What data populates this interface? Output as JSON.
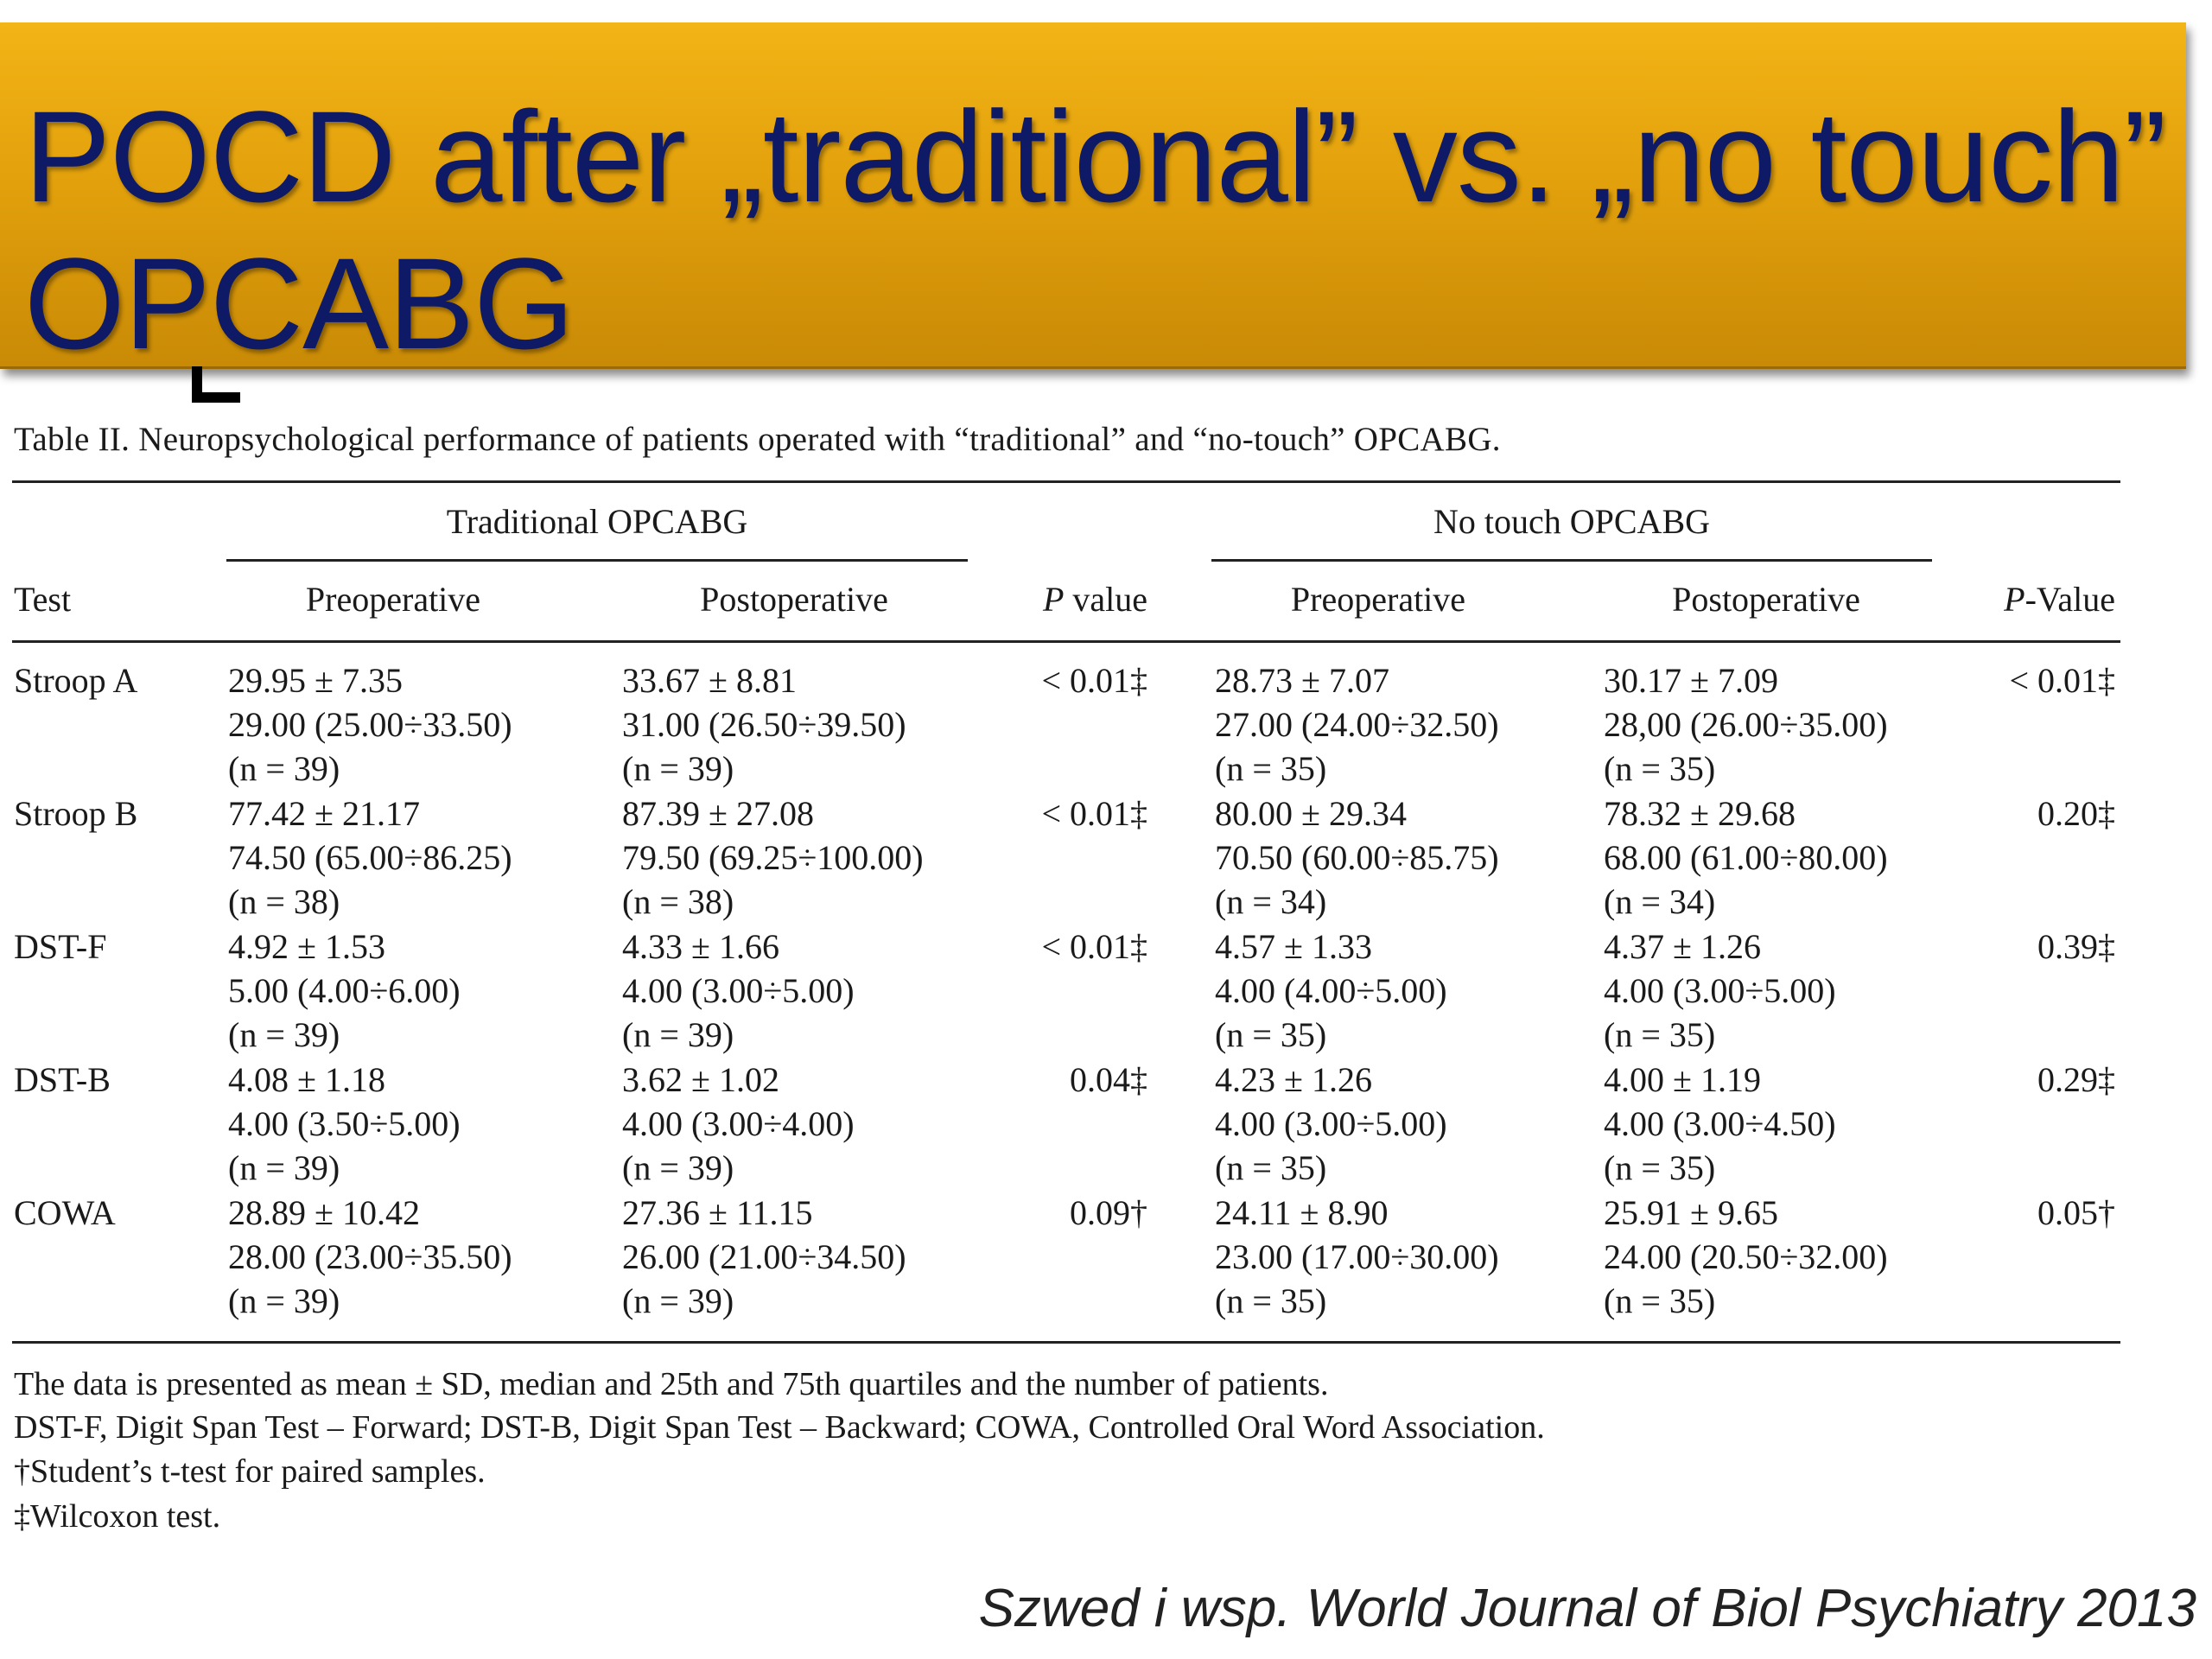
{
  "slide": {
    "title": "POCD after „traditional” vs. „no touch” OPCABG",
    "source": "Szwed i wsp. World Journal of Biol Psychiatry 2013"
  },
  "table": {
    "caption": "Table II. Neuropsychological performance of patients operated with “traditional” and “no-touch” OPCABG.",
    "groups": [
      "Traditional OPCABG",
      "No touch OPCABG"
    ],
    "headers": [
      "Test",
      "Preoperative",
      "Postoperative",
      "P value",
      "Preoperative",
      "Postoperative",
      "P-Value"
    ],
    "rows": [
      {
        "test": "Stroop A",
        "trad_pre": [
          "29.95 ± 7.35",
          "29.00 (25.00÷33.50)",
          "(n = 39)"
        ],
        "trad_post": [
          "33.67 ± 8.81",
          "31.00 (26.50÷39.50)",
          "(n = 39)"
        ],
        "trad_p": "< 0.01‡",
        "nt_pre": [
          "28.73 ± 7.07",
          "27.00 (24.00÷32.50)",
          "(n = 35)"
        ],
        "nt_post": [
          "30.17 ± 7.09",
          "28,00 (26.00÷35.00)",
          "(n = 35)"
        ],
        "nt_p": "< 0.01‡"
      },
      {
        "test": "Stroop B",
        "trad_pre": [
          "77.42 ± 21.17",
          "74.50 (65.00÷86.25)",
          "(n = 38)"
        ],
        "trad_post": [
          "87.39 ± 27.08",
          "79.50 (69.25÷100.00)",
          "(n = 38)"
        ],
        "trad_p": "< 0.01‡",
        "nt_pre": [
          "80.00 ± 29.34",
          "70.50 (60.00÷85.75)",
          "(n = 34)"
        ],
        "nt_post": [
          "78.32 ± 29.68",
          "68.00 (61.00÷80.00)",
          "(n = 34)"
        ],
        "nt_p": "0.20‡"
      },
      {
        "test": "DST-F",
        "trad_pre": [
          "4.92 ± 1.53",
          "5.00 (4.00÷6.00)",
          "(n = 39)"
        ],
        "trad_post": [
          "4.33 ± 1.66",
          "4.00 (3.00÷5.00)",
          "(n = 39)"
        ],
        "trad_p": "< 0.01‡",
        "nt_pre": [
          "4.57 ± 1.33",
          "4.00 (4.00÷5.00)",
          "(n = 35)"
        ],
        "nt_post": [
          "4.37 ± 1.26",
          "4.00 (3.00÷5.00)",
          "(n = 35)"
        ],
        "nt_p": "0.39‡"
      },
      {
        "test": "DST-B",
        "trad_pre": [
          "4.08 ± 1.18",
          "4.00 (3.50÷5.00)",
          "(n = 39)"
        ],
        "trad_post": [
          "3.62 ± 1.02",
          "4.00 (3.00÷4.00)",
          "(n = 39)"
        ],
        "trad_p": "0.04‡",
        "nt_pre": [
          "4.23 ± 1.26",
          "4.00 (3.00÷5.00)",
          "(n = 35)"
        ],
        "nt_post": [
          "4.00 ± 1.19",
          "4.00 (3.00÷4.50)",
          "(n = 35)"
        ],
        "nt_p": "0.29‡"
      },
      {
        "test": "COWA",
        "trad_pre": [
          "28.89 ± 10.42",
          "28.00 (23.00÷35.50)",
          "(n = 39)"
        ],
        "trad_post": [
          "27.36 ± 11.15",
          "26.00 (21.00÷34.50)",
          "(n = 39)"
        ],
        "trad_p": "0.09†",
        "nt_pre": [
          "24.11 ± 8.90",
          "23.00 (17.00÷30.00)",
          "(n = 35)"
        ],
        "nt_post": [
          "25.91 ± 9.65",
          "24.00 (20.50÷32.00)",
          "(n = 35)"
        ],
        "nt_p": "0.05†"
      }
    ],
    "footnotes": [
      "The data is presented as mean ± SD, median and 25th and 75th quartiles and the number of patients.",
      "DST-F, Digit Span Test – Forward; DST-B, Digit Span Test – Backward; COWA, Controlled Oral Word Association.",
      "†Student’s t-test for paired samples.",
      "‡Wilcoxon test."
    ]
  }
}
